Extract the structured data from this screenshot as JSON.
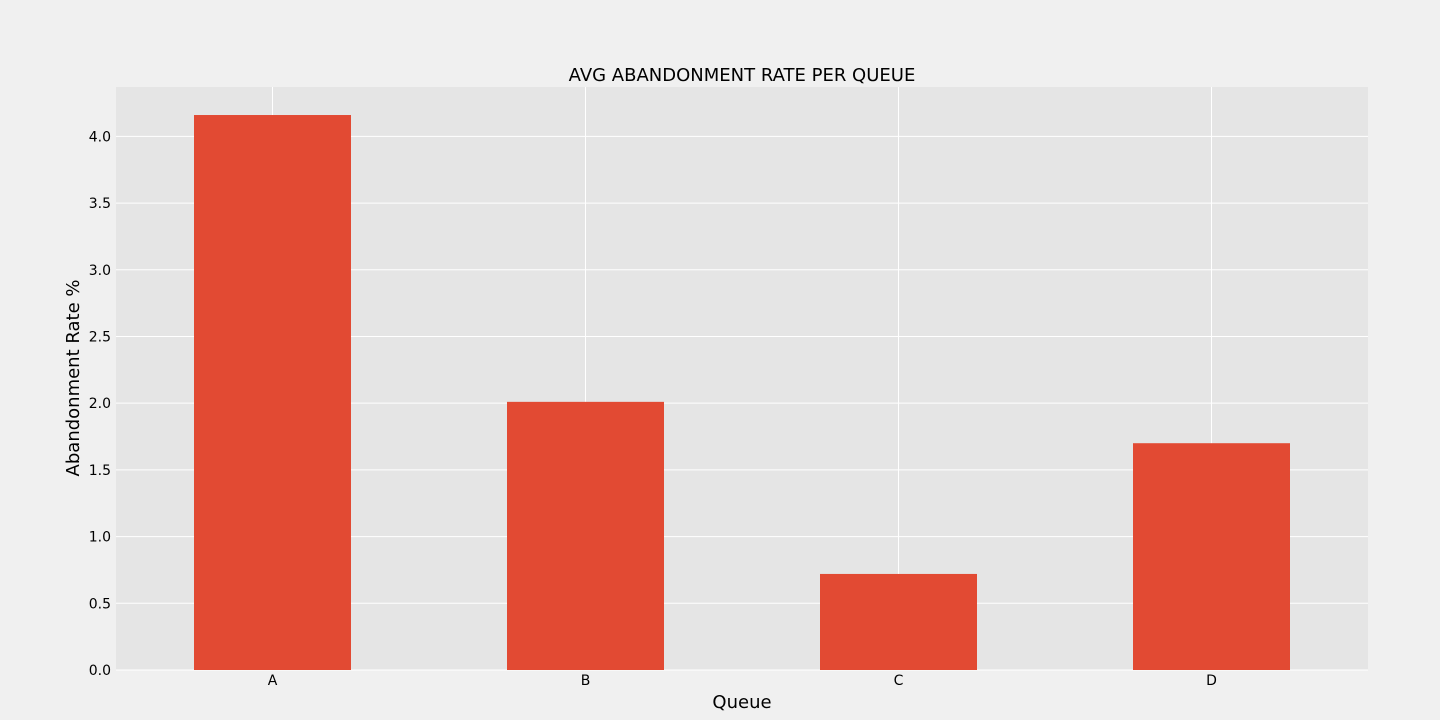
{
  "chart_data": {
    "type": "bar",
    "title": "AVG ABANDONMENT RATE PER QUEUE",
    "xlabel": "Queue",
    "ylabel": "Abandonment Rate %",
    "categories": [
      "A",
      "B",
      "C",
      "D"
    ],
    "values": [
      4.16,
      2.01,
      0.72,
      1.7
    ],
    "ylim": [
      0,
      4.37
    ],
    "yticks": [
      "0.0",
      "0.5",
      "1.0",
      "1.5",
      "2.0",
      "2.5",
      "3.0",
      "3.5",
      "4.0"
    ],
    "grid": true,
    "legend": "none",
    "colors": {
      "bar": "#e24a33",
      "plot_background": "#e5e5e5",
      "page_background": "#f0f0f0",
      "grid": "#ffffff",
      "text": "#000000"
    }
  }
}
